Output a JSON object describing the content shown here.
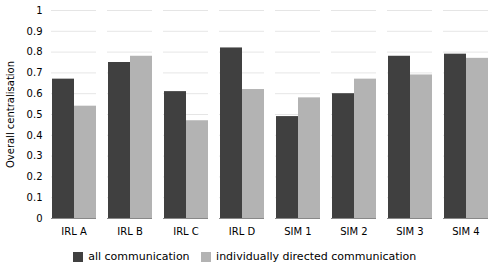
{
  "chart_data": {
    "type": "bar",
    "categories": [
      "IRL A",
      "IRL B",
      "IRL C",
      "IRL D",
      "SIM 1",
      "SIM 2",
      "SIM 3",
      "SIM 4"
    ],
    "series": [
      {
        "name": "all communication",
        "color": "#404040",
        "values": [
          0.67,
          0.75,
          0.61,
          0.82,
          0.49,
          0.6,
          0.78,
          0.79
        ]
      },
      {
        "name": "individually directed communication",
        "color": "#b3b3b3",
        "values": [
          0.54,
          0.78,
          0.47,
          0.62,
          0.58,
          0.67,
          0.69,
          0.77
        ]
      }
    ],
    "ylabel": "Overall centralisation",
    "ylim": [
      0,
      1.0
    ],
    "yticks": [
      0,
      0.1,
      0.2,
      0.3,
      0.4,
      0.5,
      0.6,
      0.7,
      0.8,
      0.9,
      1
    ],
    "grid": true,
    "legend": "bottom"
  }
}
